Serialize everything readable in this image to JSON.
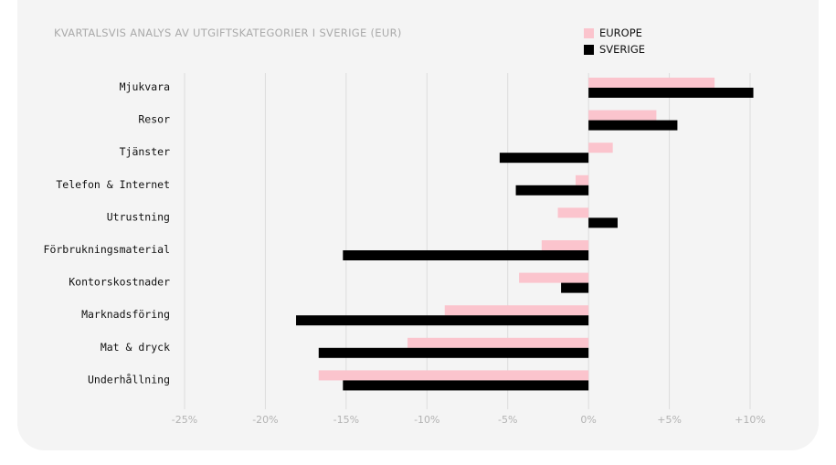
{
  "chart_data": {
    "type": "bar",
    "orientation": "horizontal",
    "title": "KVARTALSVIS ANALYS AV UTGIFTSKATEGORIER I SVERIGE (EUR)",
    "categories": [
      "Mjukvara",
      "Resor",
      "Tjänster",
      "Telefon & Internet",
      "Utrustning",
      "Förbrukningsmaterial",
      "Kontorskostnader",
      "Marknadsföring",
      "Mat & dryck",
      "Underhållning"
    ],
    "series": [
      {
        "name": "EUROPE",
        "color": "#fbc4cd",
        "values": [
          7.8,
          4.2,
          1.5,
          -0.8,
          -1.9,
          -2.9,
          -4.3,
          -8.9,
          -11.2,
          -16.7
        ]
      },
      {
        "name": "SVERIGE",
        "color": "#000000",
        "values": [
          10.2,
          5.5,
          -5.5,
          -4.5,
          1.8,
          -15.2,
          -1.7,
          -18.1,
          -16.7,
          -15.2
        ]
      }
    ],
    "xlim": [
      -25,
      10
    ],
    "xticks": [
      -25,
      -20,
      -15,
      -10,
      -5,
      0,
      5,
      10
    ],
    "xtick_labels": [
      "-25%",
      "-20%",
      "-15%",
      "-10%",
      "-5%",
      "0%",
      "+5%",
      "+10%"
    ],
    "grid": true,
    "legend_position": "top-right"
  }
}
